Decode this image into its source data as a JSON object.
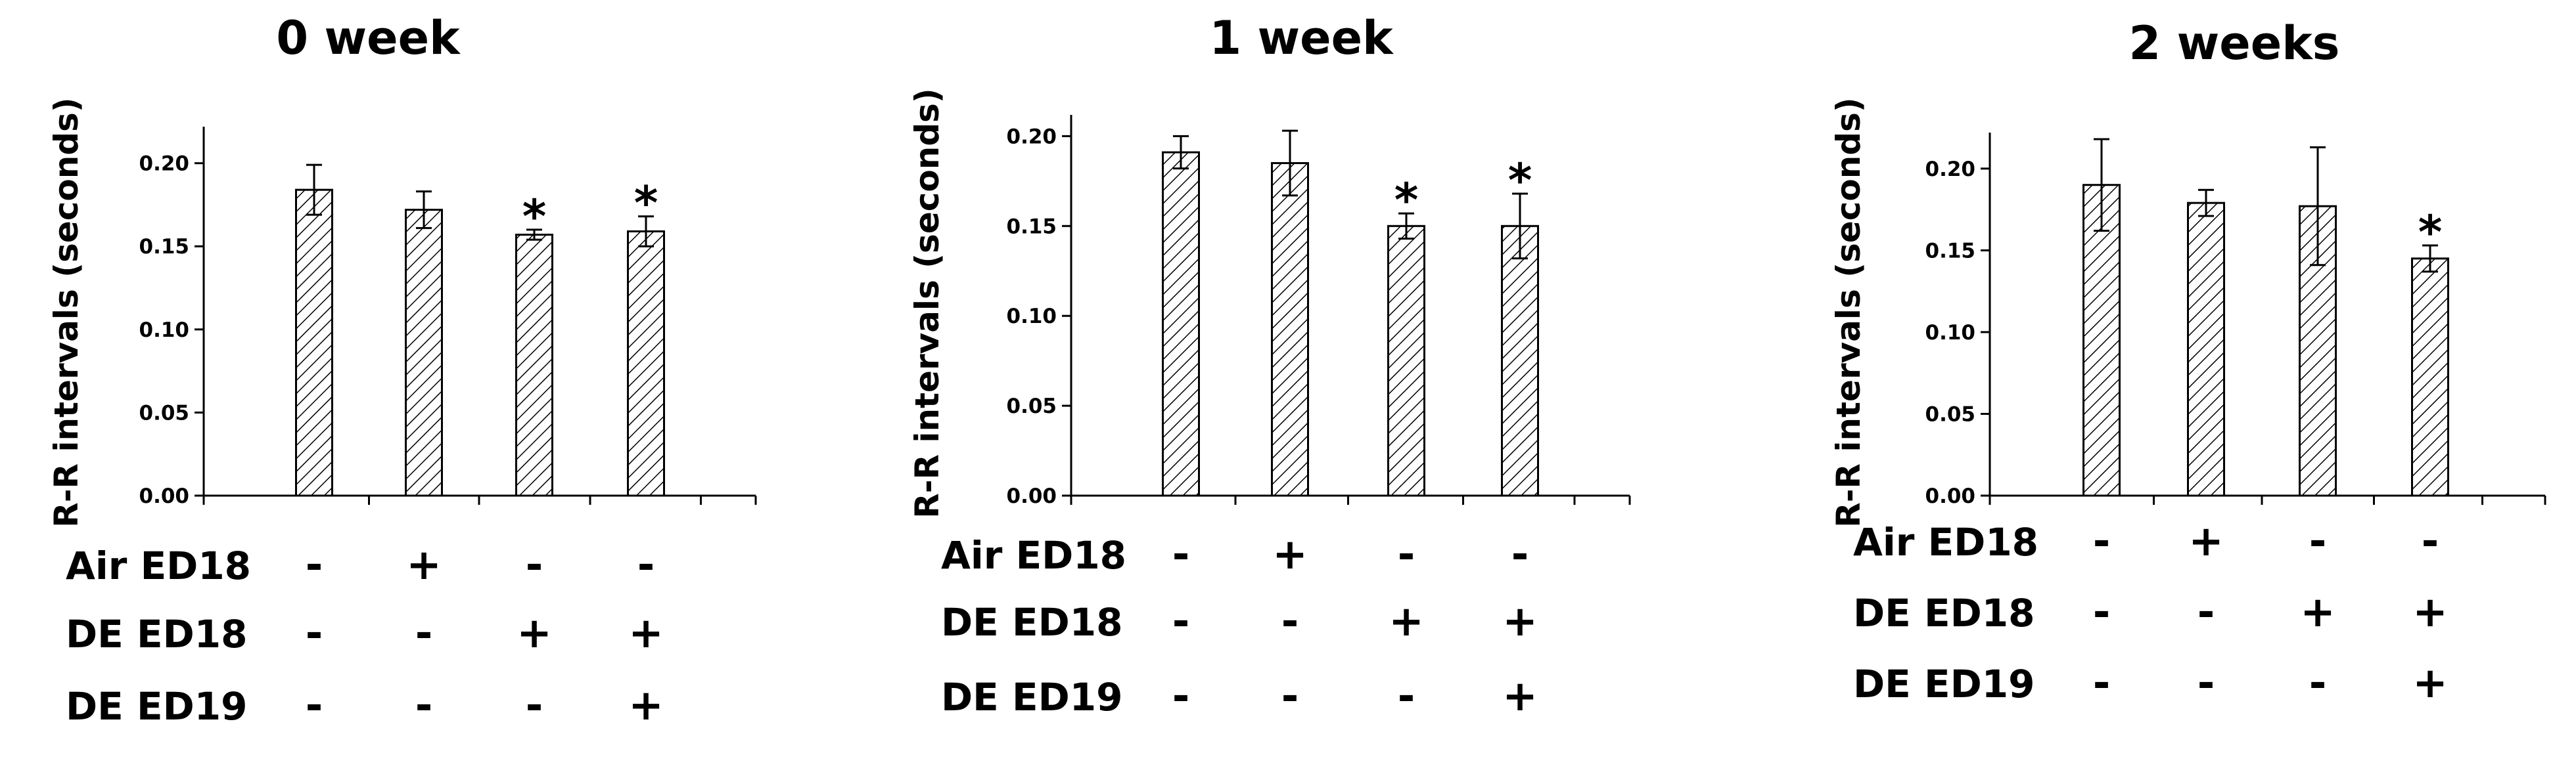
{
  "chart_data": [
    {
      "type": "bar",
      "title": "0 week",
      "xlabel": "",
      "ylabel": "R-R intervals (seconds)",
      "ylim": [
        0,
        0.22
      ],
      "yticks": [
        "0.00",
        "0.05",
        "0.10",
        "0.15",
        "0.20"
      ],
      "values": [
        0.184,
        0.172,
        0.157,
        0.159
      ],
      "errors": [
        0.015,
        0.011,
        0.003,
        0.009
      ],
      "significance": [
        "",
        "",
        "*",
        "*"
      ],
      "rows": [
        {
          "label": "Air ED18",
          "signs": [
            "-",
            "+",
            "-",
            "-"
          ]
        },
        {
          "label": "DE ED18",
          "signs": [
            "-",
            "-",
            "+",
            "+"
          ]
        },
        {
          "label": "DE ED19",
          "signs": [
            "-",
            "-",
            "-",
            "+"
          ]
        }
      ]
    },
    {
      "type": "bar",
      "title": "1 week",
      "xlabel": "",
      "ylabel": "R-R intervals (seconds)",
      "ylim": [
        0,
        0.21
      ],
      "yticks": [
        "0.00",
        "0.05",
        "0.10",
        "0.15",
        "0.20"
      ],
      "values": [
        0.191,
        0.185,
        0.15,
        0.15
      ],
      "errors": [
        0.009,
        0.018,
        0.007,
        0.018
      ],
      "significance": [
        "",
        "",
        "*",
        "*"
      ],
      "rows": [
        {
          "label": "Air ED18",
          "signs": [
            "-",
            "+",
            "-",
            "-"
          ]
        },
        {
          "label": "DE ED18",
          "signs": [
            "-",
            "-",
            "+",
            "+"
          ]
        },
        {
          "label": "DE ED19",
          "signs": [
            "-",
            "-",
            "-",
            "+"
          ]
        }
      ]
    },
    {
      "type": "bar",
      "title": "2 weeks",
      "xlabel": "",
      "ylabel": "R-R intervals (seconds)",
      "ylim": [
        0,
        0.22
      ],
      "yticks": [
        "0.00",
        "0.05",
        "0.10",
        "0.15",
        "0.20"
      ],
      "values": [
        0.19,
        0.179,
        0.177,
        0.145
      ],
      "errors": [
        0.028,
        0.008,
        0.036,
        0.008
      ],
      "significance": [
        "",
        "",
        "",
        "*"
      ],
      "rows": [
        {
          "label": "Air ED18",
          "signs": [
            "-",
            "+",
            "-",
            "-"
          ]
        },
        {
          "label": "DE ED18",
          "signs": [
            "-",
            "-",
            "+",
            "+"
          ]
        },
        {
          "label": "DE ED19",
          "signs": [
            "-",
            "-",
            "-",
            "+"
          ]
        }
      ]
    }
  ]
}
